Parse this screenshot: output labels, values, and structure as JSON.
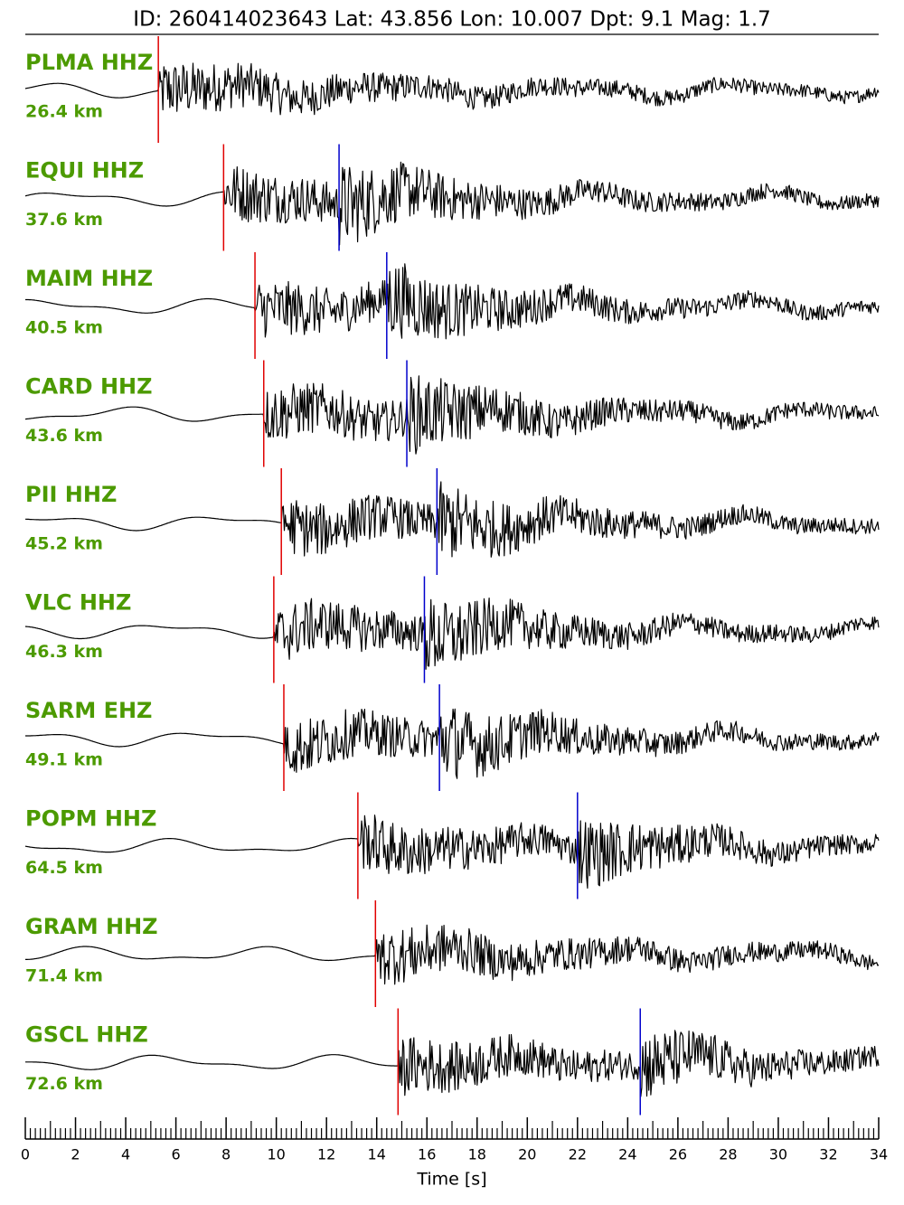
{
  "chart_data": {
    "type": "seismogram",
    "title": "ID: 260414023643 Lat:  43.856 Lon:  10.007 Dpt:     9.1 Mag:   1.7",
    "xlabel": "Time [s]",
    "xlim": [
      0,
      34
    ],
    "xticks": [
      0,
      2,
      4,
      6,
      8,
      10,
      12,
      14,
      16,
      18,
      20,
      22,
      24,
      26,
      28,
      30,
      32,
      34
    ],
    "label_color": "#4c9a00",
    "trace_color": "#000000",
    "p_color": "#e00000",
    "s_color": "#0000cc",
    "series": [
      {
        "name": "PLMA HHZ",
        "distance": "26.4 km",
        "p_pick": 5.3,
        "s_pick": null
      },
      {
        "name": "EQUI HHZ",
        "distance": "37.6 km",
        "p_pick": 7.9,
        "s_pick": 12.5
      },
      {
        "name": "MAIM HHZ",
        "distance": "40.5 km",
        "p_pick": 9.15,
        "s_pick": 14.4
      },
      {
        "name": "CARD HHZ",
        "distance": "43.6 km",
        "p_pick": 9.5,
        "s_pick": 15.2
      },
      {
        "name": "PII HHZ",
        "distance": "45.2 km",
        "p_pick": 10.2,
        "s_pick": 16.4
      },
      {
        "name": "VLC HHZ",
        "distance": "46.3 km",
        "p_pick": 9.9,
        "s_pick": 15.9
      },
      {
        "name": "SARM EHZ",
        "distance": "49.1 km",
        "p_pick": 10.3,
        "s_pick": 16.5
      },
      {
        "name": "POPM HHZ",
        "distance": "64.5 km",
        "p_pick": 13.25,
        "s_pick": 22.0
      },
      {
        "name": "GRAM HHZ",
        "distance": "71.4 km",
        "p_pick": 13.95,
        "s_pick": null
      },
      {
        "name": "GSCL HHZ",
        "distance": "72.6 km",
        "p_pick": 14.85,
        "s_pick": 24.5
      }
    ]
  }
}
